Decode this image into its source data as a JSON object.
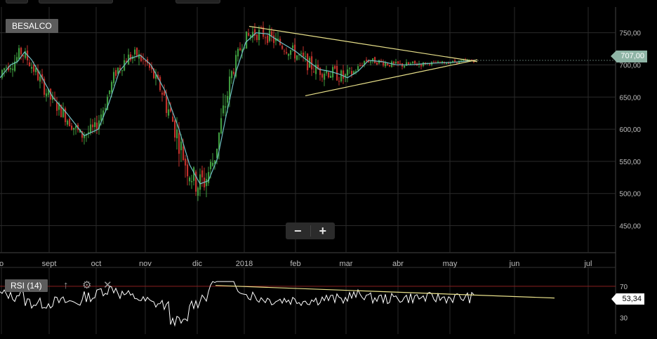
{
  "symbol": "BESALCO",
  "rsi_label": "RSI (14)",
  "zoom": {
    "minus": "−",
    "plus": "+"
  },
  "icons": {
    "rsi_up": "arrow-up-icon",
    "rsi_settings": "gear-icon",
    "rsi_close": "close-icon"
  },
  "colors": {
    "up": "#3e9a3e",
    "down": "#c0312b",
    "ma": "#6fc0c4",
    "trend": "#e8e08a",
    "rsi_line": "#ffffff",
    "rsi_ref": "#8b1f1f",
    "grid": "#2a2a2a"
  },
  "chart_data": [
    {
      "type": "candlestick",
      "title": "BESALCO",
      "x_tick_labels": [
        "o",
        "sept",
        "oct",
        "nov",
        "dic",
        "2018",
        "feb",
        "mar",
        "abr",
        "may",
        "jun",
        "jul"
      ],
      "y_ticks": [
        750,
        700,
        650,
        600,
        550,
        500,
        450
      ],
      "y_tick_labels": [
        "750,00",
        "700,00",
        "650,00",
        "600,00",
        "550,00",
        "500,00",
        "450,00"
      ],
      "ylim": [
        408,
        790
      ],
      "grid": true,
      "last_price_label": "707,00",
      "moving_average_key_points": [
        [
          0,
          680
        ],
        [
          15,
          700
        ],
        [
          25,
          705
        ],
        [
          35,
          720
        ],
        [
          45,
          708
        ],
        [
          60,
          680
        ],
        [
          75,
          650
        ],
        [
          95,
          625
        ],
        [
          120,
          590
        ],
        [
          140,
          600
        ],
        [
          155,
          640
        ],
        [
          170,
          690
        ],
        [
          185,
          710
        ],
        [
          200,
          715
        ],
        [
          215,
          700
        ],
        [
          235,
          660
        ],
        [
          255,
          600
        ],
        [
          270,
          545
        ],
        [
          285,
          515
        ],
        [
          297,
          520
        ],
        [
          310,
          555
        ],
        [
          322,
          620
        ],
        [
          335,
          685
        ],
        [
          350,
          735
        ],
        [
          365,
          750
        ],
        [
          382,
          748
        ],
        [
          400,
          735
        ],
        [
          420,
          722
        ],
        [
          440,
          705
        ],
        [
          455,
          693
        ],
        [
          470,
          690
        ],
        [
          485,
          685
        ],
        [
          495,
          680
        ],
        [
          510,
          690
        ],
        [
          525,
          707
        ],
        [
          545,
          705
        ],
        [
          565,
          700
        ],
        [
          585,
          700
        ],
        [
          605,
          702
        ],
        [
          625,
          703
        ],
        [
          645,
          704
        ],
        [
          665,
          706
        ],
        [
          675,
          707
        ]
      ],
      "trendlines": [
        {
          "from": [
            355,
            760
          ],
          "to": [
            680,
            705
          ]
        },
        {
          "from": [
            435,
            652
          ],
          "to": [
            680,
            708
          ]
        }
      ]
    },
    {
      "type": "line",
      "title": "RSI (14)",
      "y_ticks": [
        70,
        30
      ],
      "y_tick_labels": [
        "70",
        "30"
      ],
      "ylim": [
        9,
        94
      ],
      "reference_line": 70,
      "last_value_label": "53,34",
      "trendline": {
        "from": [
          307,
          71
        ],
        "to": [
          790,
          55
        ]
      }
    }
  ]
}
